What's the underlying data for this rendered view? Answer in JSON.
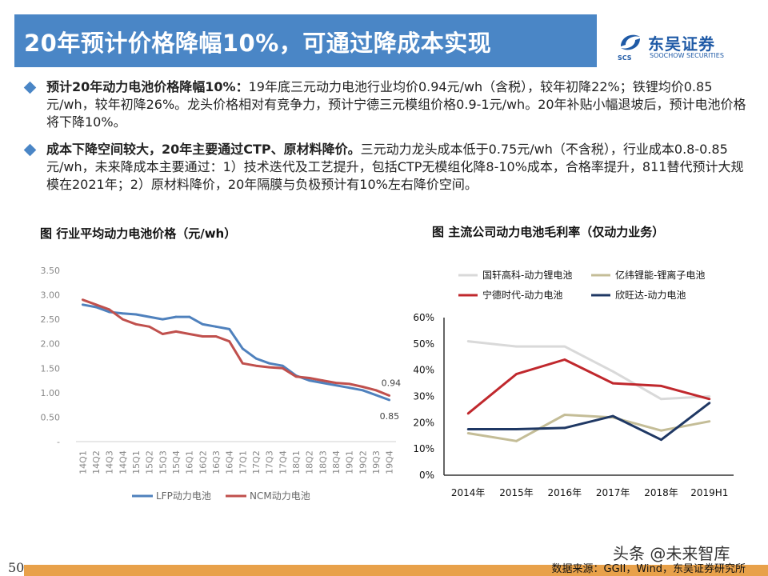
{
  "header": {
    "title": "20年预计价格降幅10%，可通过降成本实现"
  },
  "logo": {
    "cn": "东吴证券",
    "en": "SOOCHOW SECURITIES",
    "scs": "SCS"
  },
  "bullets": [
    {
      "bold": "预计20年动力电池价格降幅10%：",
      "text": "19年底三元动力电池行业均价0.94元/wh（含税），较年初降22%；铁锂均价0.85元/wh，较年初降26%。龙头价格相对有竞争力，预计宁德三元模组价格0.9-1元/wh。20年补贴小幅退坡后，预计电池价格将下降10%。"
    },
    {
      "bold": "成本下降空间较大，20年主要通过CTP、原材料降价。",
      "text": "三元动力龙头成本低于0.75元/wh（不含税），行业成本0.8-0.85元/wh，未来降成本主要通过：1）技术迭代及工艺提升，包括CTP无模组化降8-10%成本，合格率提升，811替代预计大规模在2021年；2）原材料降价，20年隔膜与负极预计有10%左右降价空间。"
    }
  ],
  "chart_data": [
    {
      "type": "line",
      "title": "图 行业平均动力电池价格（元/wh）",
      "x": [
        "14Q1",
        "14Q2",
        "14Q3",
        "14Q4",
        "15Q1",
        "15Q2",
        "15Q3",
        "15Q4",
        "16Q1",
        "16Q2",
        "16Q3",
        "16Q4",
        "17Q1",
        "17Q2",
        "17Q3",
        "17Q4",
        "18Q1",
        "18Q2",
        "18Q3",
        "18Q4",
        "19Q1",
        "19Q2",
        "19Q3",
        "19Q4"
      ],
      "ylim": [
        0,
        3.5
      ],
      "yticks": [
        "-",
        "0.50",
        "1.00",
        "1.50",
        "2.00",
        "2.50",
        "3.00",
        "3.50"
      ],
      "grid": false,
      "legend": "bottom",
      "series": [
        {
          "name": "LFP动力电池",
          "color": "#4f81bd",
          "values": [
            2.8,
            2.75,
            2.65,
            2.62,
            2.6,
            2.55,
            2.5,
            2.55,
            2.55,
            2.4,
            2.35,
            2.3,
            1.9,
            1.7,
            1.6,
            1.55,
            1.35,
            1.25,
            1.2,
            1.15,
            1.1,
            1.05,
            0.95,
            0.85
          ]
        },
        {
          "name": "NCM动力电池",
          "color": "#c0504d",
          "values": [
            2.9,
            2.8,
            2.7,
            2.5,
            2.4,
            2.35,
            2.2,
            2.25,
            2.2,
            2.15,
            2.15,
            2.05,
            1.6,
            1.55,
            1.52,
            1.5,
            1.33,
            1.3,
            1.25,
            1.2,
            1.18,
            1.12,
            1.05,
            0.94
          ]
        }
      ],
      "annotations": [
        "0.94",
        "0.85"
      ]
    },
    {
      "type": "line",
      "title": "图 主流公司动力电池毛利率（仅动力业务）",
      "x": [
        "2014年",
        "2015年",
        "2016年",
        "2017年",
        "2018年",
        "2019H1"
      ],
      "ylim": [
        0,
        60
      ],
      "yticks": [
        "0%",
        "10%",
        "20%",
        "30%",
        "40%",
        "50%",
        "60%"
      ],
      "grid": false,
      "legend": "top",
      "series": [
        {
          "name": "国轩高科-动力锂电池",
          "color": "#d9d9d9",
          "values": [
            51,
            49,
            49,
            39.5,
            29,
            30
          ]
        },
        {
          "name": "亿纬锂能-锂离子电池",
          "color": "#c4bd97",
          "values": [
            16,
            13,
            23,
            22,
            17,
            20.5
          ]
        },
        {
          "name": "宁德时代-动力电池",
          "color": "#c0282d",
          "values": [
            23.5,
            38.5,
            44,
            35,
            34,
            29
          ]
        },
        {
          "name": "欣旺达-动力电池",
          "color": "#1f3864",
          "values": [
            17.5,
            17.5,
            18,
            22.5,
            13.5,
            27.5
          ]
        }
      ]
    }
  ],
  "footer": {
    "page": "50",
    "source": "数据来源：GGII，Wind，东吴证券研究所",
    "watermark": "头条 @未来智库"
  }
}
